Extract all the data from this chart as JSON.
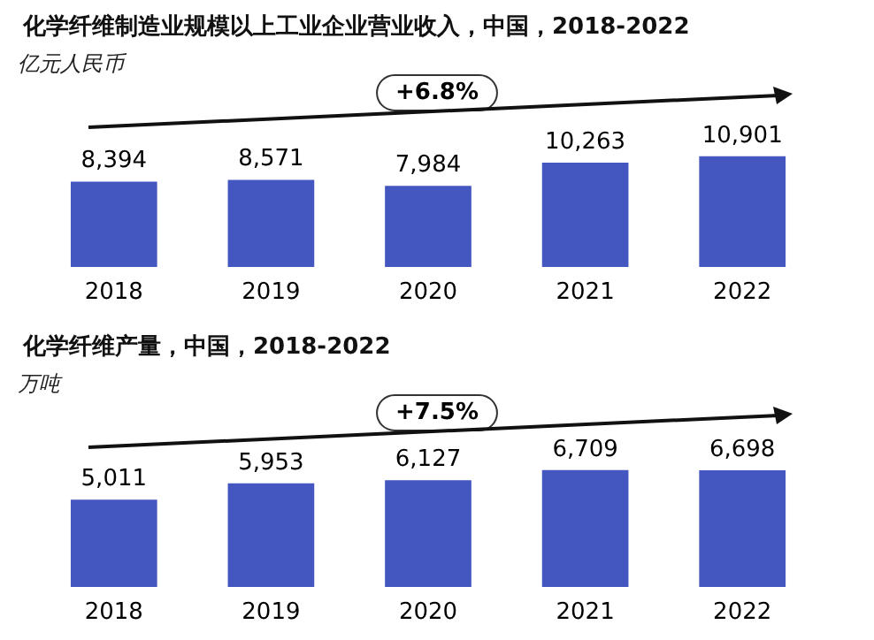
{
  "chart_data": [
    {
      "type": "bar",
      "title": "化学纤维制造业规模以上工业企业营业收入，中国，2018-2022",
      "ylabel": "亿元人民币",
      "categories": [
        "2018",
        "2019",
        "2020",
        "2021",
        "2022"
      ],
      "values": [
        8394,
        8571,
        7984,
        10263,
        10901
      ],
      "value_labels": [
        "8,394",
        "8,571",
        "7,984",
        "10,263",
        "10,901"
      ],
      "color": "#4456bf",
      "annotations": [
        "+6.8%"
      ]
    },
    {
      "type": "bar",
      "title": "化学纤维产量，中国，2018-2022",
      "ylabel": "万吨",
      "categories": [
        "2018",
        "2019",
        "2020",
        "2021",
        "2022"
      ],
      "values": [
        5011,
        5953,
        6127,
        6709,
        6698
      ],
      "value_labels": [
        "5,011",
        "5,953",
        "6,127",
        "6,709",
        "6,698"
      ],
      "color": "#4456bf",
      "annotations": [
        "+7.5%"
      ]
    }
  ]
}
